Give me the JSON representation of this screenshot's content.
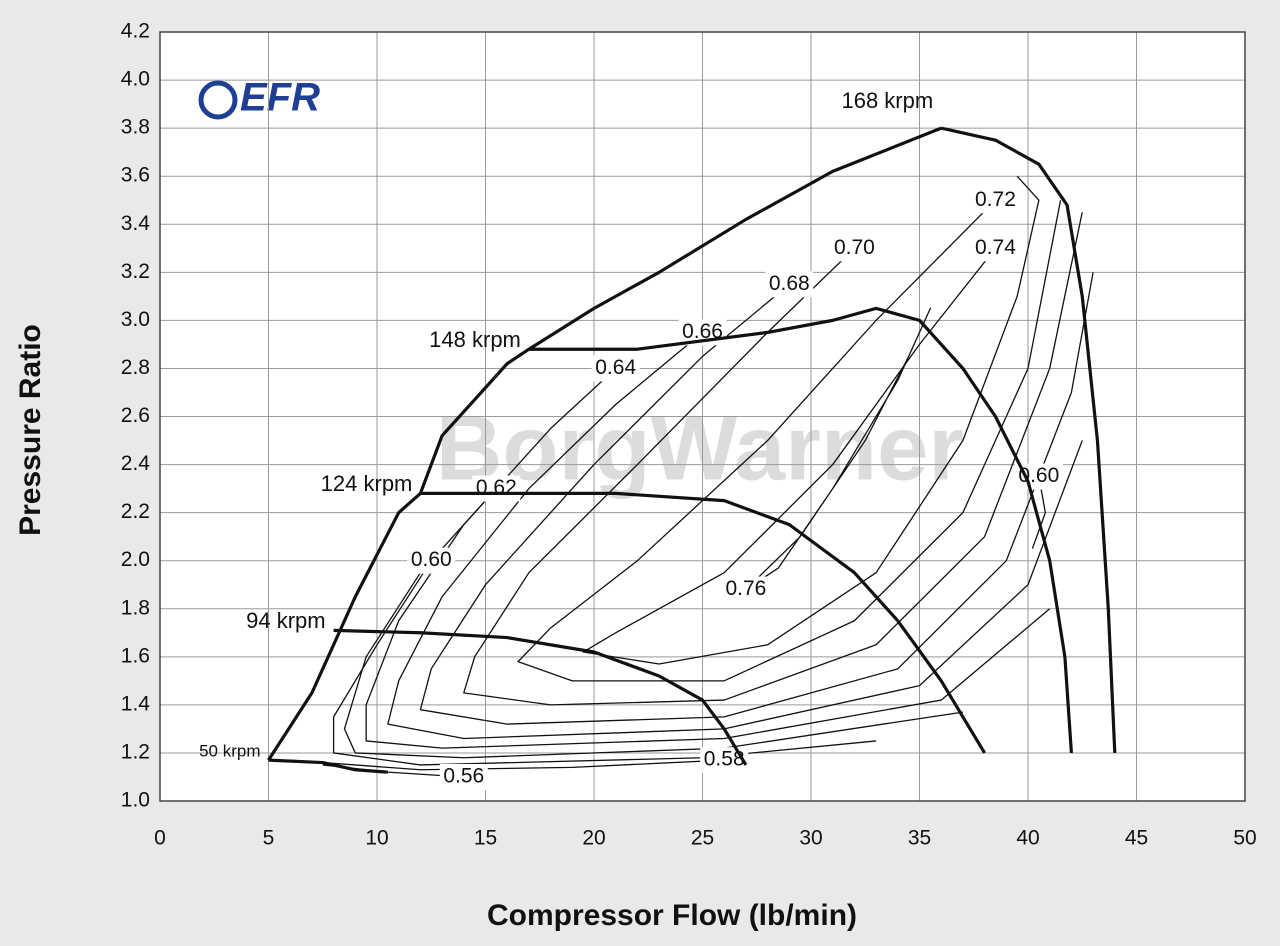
{
  "chart_data": {
    "type": "line",
    "x_label": "Compressor Flow (lb/min)",
    "y_label": "Pressure Ratio",
    "logo": "EFR",
    "watermark": "BorgWarner",
    "grid": true,
    "color": "#111111",
    "xlim": [
      0,
      50
    ],
    "xticks": [
      0,
      5,
      10,
      15,
      20,
      25,
      30,
      35,
      40,
      45,
      50
    ],
    "ylim": [
      1.0,
      4.2
    ],
    "yticks": [
      {
        "value": 1.0,
        "label": "1.0"
      },
      1.2,
      1.4,
      1.6,
      1.8,
      {
        "value": 2.0,
        "label": "2.0"
      },
      2.2,
      2.4,
      2.6,
      2.8,
      {
        "value": 3.0,
        "label": "3.0"
      },
      3.2,
      3.4,
      3.6,
      3.8,
      {
        "value": 4.0,
        "label": "4.0"
      },
      4.2
    ],
    "surge_line": {
      "x": [
        5,
        7,
        9,
        11,
        12,
        13,
        14,
        16,
        17,
        20,
        23,
        27,
        31,
        36
      ],
      "values": [
        1.17,
        1.45,
        1.85,
        2.2,
        2.28,
        2.52,
        2.62,
        2.82,
        2.88,
        3.05,
        3.2,
        3.42,
        3.62,
        3.8
      ]
    },
    "series": [
      {
        "name": "168 krpm",
        "x": [
          36,
          38.5,
          40.5,
          41.8,
          42.5,
          43.2,
          43.7,
          44
        ],
        "values": [
          3.8,
          3.75,
          3.65,
          3.48,
          3.1,
          2.5,
          1.8,
          1.2
        ]
      },
      {
        "name": "148 krpm",
        "x": [
          17,
          22,
          28,
          31,
          33,
          35,
          37,
          38.5,
          40,
          41,
          41.7,
          42
        ],
        "values": [
          2.88,
          2.88,
          2.95,
          3.0,
          3.05,
          3.0,
          2.8,
          2.6,
          2.33,
          2.0,
          1.6,
          1.2
        ]
      },
      {
        "name": "124 krpm",
        "x": [
          12,
          17,
          21,
          26,
          29,
          32,
          34,
          36,
          37,
          38
        ],
        "values": [
          2.28,
          2.28,
          2.28,
          2.25,
          2.15,
          1.95,
          1.75,
          1.5,
          1.35,
          1.2
        ]
      },
      {
        "name": "94 krpm",
        "x": [
          8,
          12,
          16,
          20,
          23,
          25,
          26,
          27
        ],
        "values": [
          1.71,
          1.7,
          1.68,
          1.62,
          1.52,
          1.42,
          1.3,
          1.15
        ]
      },
      {
        "name": "50 krpm",
        "x": [
          5,
          7.5,
          9,
          10.5
        ],
        "values": [
          1.17,
          1.16,
          1.13,
          1.12
        ]
      }
    ],
    "efficiency_contours": [
      {
        "name": "0.76",
        "x": [
          27,
          29.5,
          32.5,
          34.5,
          35.5,
          34,
          31,
          28.5,
          27
        ],
        "values": [
          1.88,
          2.1,
          2.5,
          2.85,
          3.05,
          2.75,
          2.3,
          1.97,
          1.88
        ]
      },
      {
        "name": "0.74",
        "x": [
          38.5,
          35,
          31,
          26,
          21,
          19.5,
          23,
          28,
          33,
          37,
          39.5,
          40.5,
          39.5
        ],
        "values": [
          3.3,
          2.9,
          2.4,
          1.95,
          1.7,
          1.62,
          1.57,
          1.65,
          1.95,
          2.5,
          3.1,
          3.5,
          3.6
        ]
      },
      {
        "name": "0.72",
        "x": [
          38.5,
          33,
          28,
          22,
          18,
          16.5,
          19,
          26,
          32,
          37,
          40,
          41.5
        ],
        "values": [
          3.5,
          3.0,
          2.5,
          2.0,
          1.72,
          1.58,
          1.5,
          1.5,
          1.75,
          2.2,
          2.8,
          3.5
        ]
      },
      {
        "name": "0.70",
        "x": [
          32,
          28,
          22,
          17,
          14.5,
          14,
          18,
          26,
          33,
          38,
          41,
          42.5
        ],
        "values": [
          3.3,
          2.95,
          2.4,
          1.95,
          1.6,
          1.45,
          1.4,
          1.42,
          1.65,
          2.1,
          2.8,
          3.45
        ]
      },
      {
        "name": "0.68",
        "x": [
          29,
          25,
          20,
          15,
          12.5,
          12,
          16,
          26,
          34,
          39,
          42,
          43
        ],
        "values": [
          3.15,
          2.85,
          2.4,
          1.9,
          1.55,
          1.38,
          1.32,
          1.35,
          1.55,
          2.0,
          2.7,
          3.2
        ]
      },
      {
        "name": "0.66",
        "x": [
          25,
          21,
          17,
          13,
          11,
          10.5,
          14,
          26,
          35,
          40,
          42.5
        ],
        "values": [
          2.95,
          2.65,
          2.3,
          1.85,
          1.5,
          1.32,
          1.26,
          1.3,
          1.48,
          1.9,
          2.5
        ]
      },
      {
        "name": "0.64",
        "x": [
          21,
          18,
          14,
          11,
          9.5,
          9.5,
          13,
          26,
          36,
          41
        ],
        "values": [
          2.8,
          2.55,
          2.15,
          1.75,
          1.4,
          1.25,
          1.22,
          1.26,
          1.42,
          1.8
        ]
      },
      {
        "name": "0.62",
        "x": [
          15.5,
          12,
          9.5,
          8.5,
          9,
          14,
          26,
          37
        ],
        "values": [
          2.3,
          1.95,
          1.6,
          1.3,
          1.2,
          1.18,
          1.22,
          1.37
        ]
      },
      {
        "name": "0.60",
        "x": [
          12.5,
          10,
          8,
          8,
          12,
          25,
          33
        ],
        "values": [
          2.0,
          1.65,
          1.35,
          1.2,
          1.15,
          1.18,
          1.25
        ]
      },
      {
        "name": "0.58",
        "x": [
          26,
          19,
          12,
          6
        ],
        "values": [
          1.17,
          1.14,
          1.13,
          1.17
        ]
      },
      {
        "name": "0.56",
        "x": [
          14,
          10.5,
          7.5
        ],
        "values": [
          1.1,
          1.12,
          1.15
        ]
      },
      {
        "name": "0.60",
        "x": [
          40.5,
          40.8,
          40.2
        ],
        "values": [
          2.35,
          2.2,
          2.05
        ]
      }
    ]
  }
}
